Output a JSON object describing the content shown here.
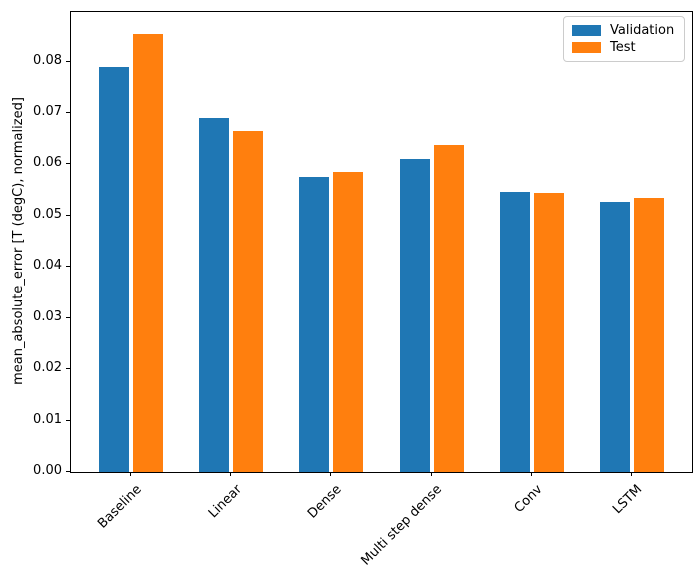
{
  "chart_data": {
    "type": "bar",
    "title": "",
    "xlabel": "",
    "ylabel": "mean_absolute_error [T (degC), normalized]",
    "categories": [
      "Baseline",
      "Linear",
      "Dense",
      "Multi step dense",
      "Conv",
      "LSTM"
    ],
    "series": [
      {
        "name": "Validation",
        "color": "#1f77b4",
        "values": [
          0.079,
          0.069,
          0.0575,
          0.061,
          0.0547,
          0.0526
        ]
      },
      {
        "name": "Test",
        "color": "#ff7f0e",
        "values": [
          0.0855,
          0.0666,
          0.0586,
          0.0637,
          0.0545,
          0.0535
        ]
      }
    ],
    "yticks": [
      "0.00",
      "0.01",
      "0.02",
      "0.03",
      "0.04",
      "0.05",
      "0.06",
      "0.07",
      "0.08"
    ],
    "ylim": [
      0,
      0.0897
    ],
    "bar_width": 0.3,
    "bar_offsets": [
      -0.17,
      0.17
    ],
    "grid": false,
    "legend_position": "upper right",
    "xtick_rotation": 45
  }
}
